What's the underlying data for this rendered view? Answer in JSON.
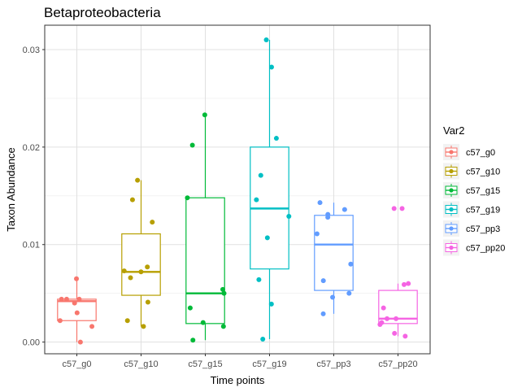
{
  "chart_data": {
    "type": "box",
    "title": "Betaproteobacteria",
    "xlabel": "Time points",
    "ylabel": "Taxon Abundance",
    "ylim": [
      -0.0012,
      0.0325
    ],
    "yticks": [
      0.0,
      0.01,
      0.02,
      0.03
    ],
    "ytick_labels": [
      "0.00",
      "0.01",
      "0.02",
      "0.03"
    ],
    "grid": true,
    "legend": {
      "title": "Var2",
      "position": "right"
    },
    "categories": [
      "c57_g0",
      "c57_g10",
      "c57_g15",
      "c57_g19",
      "c57_pp3",
      "c57_pp20"
    ],
    "series": [
      {
        "name": "c57_g0",
        "color": "#F8766D",
        "box": {
          "whisker_low": 0.0,
          "q1": 0.0022,
          "median": 0.0042,
          "q3": 0.0044,
          "whisker_high": 0.0065
        },
        "points": [
          0.0065,
          0.0044,
          0.0044,
          0.0044,
          0.004,
          0.003,
          0.0022,
          0.0016,
          0.0
        ]
      },
      {
        "name": "c57_g10",
        "color": "#B79F00",
        "box": {
          "whisker_low": 0.0016,
          "q1": 0.0048,
          "median": 0.0072,
          "q3": 0.0111,
          "whisker_high": 0.0166
        },
        "points": [
          0.0166,
          0.0146,
          0.0123,
          0.0077,
          0.0073,
          0.0072,
          0.0066,
          0.0041,
          0.0022,
          0.0016
        ]
      },
      {
        "name": "c57_g15",
        "color": "#00BA38",
        "box": {
          "whisker_low": 0.0002,
          "q1": 0.0019,
          "median": 0.005,
          "q3": 0.0148,
          "whisker_high": 0.0233
        },
        "points": [
          0.0233,
          0.0202,
          0.0148,
          0.0054,
          0.005,
          0.0035,
          0.002,
          0.0016,
          0.0002
        ]
      },
      {
        "name": "c57_g19",
        "color": "#00BFC4",
        "box": {
          "whisker_low": 0.0003,
          "q1": 0.0075,
          "median": 0.0137,
          "q3": 0.02,
          "whisker_high": 0.031
        },
        "points": [
          0.031,
          0.0282,
          0.0209,
          0.0171,
          0.0146,
          0.0129,
          0.0107,
          0.0064,
          0.0039,
          0.0003
        ]
      },
      {
        "name": "c57_pp3",
        "color": "#619CFF",
        "box": {
          "whisker_low": 0.0029,
          "q1": 0.0053,
          "median": 0.01,
          "q3": 0.013,
          "whisker_high": 0.0143
        },
        "points": [
          0.0143,
          0.0136,
          0.0131,
          0.0128,
          0.0111,
          0.008,
          0.0063,
          0.005,
          0.0046,
          0.0029
        ]
      },
      {
        "name": "c57_pp20",
        "color": "#F564E3",
        "box": {
          "whisker_low": 0.0006,
          "q1": 0.0019,
          "median": 0.0024,
          "q3": 0.0053,
          "whisker_high": 0.006
        },
        "points": [
          0.0137,
          0.0137,
          0.006,
          0.0059,
          0.0035,
          0.0024,
          0.0024,
          0.002,
          0.0018,
          0.0009,
          0.0006
        ]
      }
    ]
  }
}
